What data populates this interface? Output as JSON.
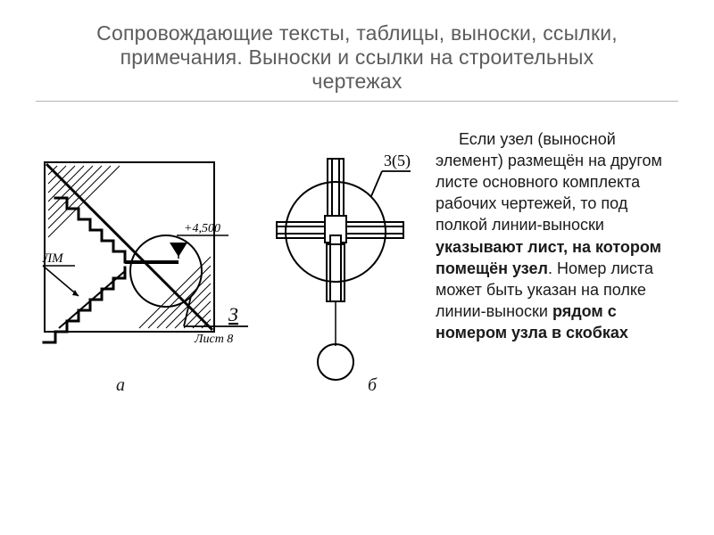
{
  "title": {
    "line1": "Сопровождающие тексты, таблицы, выноски, ссылки,",
    "line2": "примечания. Выноски и ссылки на строительных",
    "line3": "чертежах",
    "fontsize": 23,
    "color": "#5c5c5c"
  },
  "rule": {
    "color": "#b5b5b5"
  },
  "body": {
    "fontsize": 18,
    "color": "#1a1a1a",
    "segments": [
      {
        "text": "Если узел (выносной элемент) размещён на другом листе основного комплекта рабочих чертежей, то под полкой линии-выноски ",
        "bold": false
      },
      {
        "text": "указывают лист, на котором помещён узел",
        "bold": true
      },
      {
        "text": ". Номер листа может быть указан на полке линии-выноски ",
        "bold": false
      },
      {
        "text": "рядом с номером узла в скобках",
        "bold": true
      }
    ]
  },
  "figure": {
    "stroke": "#000000",
    "sublabels": {
      "a": "а",
      "b": "б",
      "fontsize": 20,
      "color": "#1a1a1a"
    },
    "a": {
      "elev_label": "+4,500",
      "lm_label": "ЛМ",
      "node_number": "3",
      "sheet_label": "Лист 8"
    },
    "b": {
      "leader_label": "3(5)"
    }
  }
}
